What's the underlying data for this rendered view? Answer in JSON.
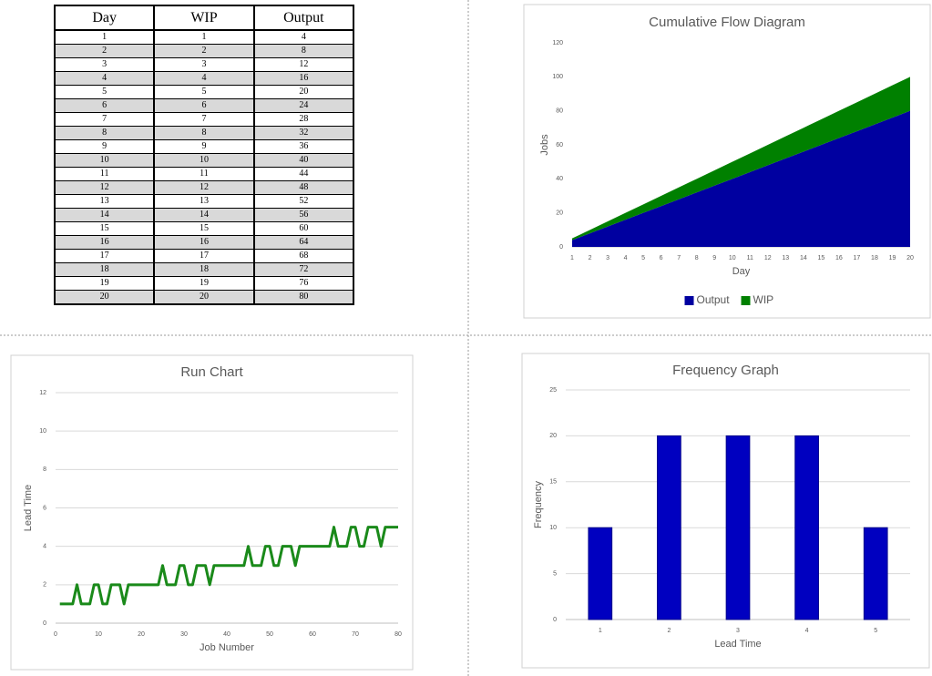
{
  "table": {
    "header": [
      "Day",
      "WIP",
      "Output"
    ],
    "rows": [
      [
        1,
        1,
        4
      ],
      [
        2,
        2,
        8
      ],
      [
        3,
        3,
        12
      ],
      [
        4,
        4,
        16
      ],
      [
        5,
        5,
        20
      ],
      [
        6,
        6,
        24
      ],
      [
        7,
        7,
        28
      ],
      [
        8,
        8,
        32
      ],
      [
        9,
        9,
        36
      ],
      [
        10,
        10,
        40
      ],
      [
        11,
        11,
        44
      ],
      [
        12,
        12,
        48
      ],
      [
        13,
        13,
        52
      ],
      [
        14,
        14,
        56
      ],
      [
        15,
        15,
        60
      ],
      [
        16,
        16,
        64
      ],
      [
        17,
        17,
        68
      ],
      [
        18,
        18,
        72
      ],
      [
        19,
        19,
        76
      ],
      [
        20,
        20,
        80
      ]
    ]
  },
  "chart_data": [
    {
      "type": "area",
      "stacked": true,
      "title": "Cumulative Flow Diagram",
      "x_label": "Day",
      "y_label": "Jobs",
      "x": [
        1,
        2,
        3,
        4,
        5,
        6,
        7,
        8,
        9,
        10,
        11,
        12,
        13,
        14,
        15,
        16,
        17,
        18,
        19,
        20
      ],
      "series": [
        {
          "name": "Output",
          "color": "#0000a0",
          "values": [
            4,
            8,
            12,
            16,
            20,
            24,
            28,
            32,
            36,
            40,
            44,
            48,
            52,
            56,
            60,
            64,
            68,
            72,
            76,
            80
          ]
        },
        {
          "name": "WIP",
          "color": "#008000",
          "values": [
            1,
            2,
            3,
            4,
            5,
            6,
            7,
            8,
            9,
            10,
            11,
            12,
            13,
            14,
            15,
            16,
            17,
            18,
            19,
            20
          ]
        }
      ],
      "xlim": [
        1,
        20
      ],
      "xticks": [
        1,
        2,
        3,
        4,
        5,
        6,
        7,
        8,
        9,
        10,
        11,
        12,
        13,
        14,
        15,
        16,
        17,
        18,
        19,
        20
      ],
      "ylim": [
        0,
        120
      ],
      "yticks": [
        0,
        20,
        40,
        60,
        80,
        100,
        120
      ],
      "grid": false,
      "legend": "bottom"
    },
    {
      "type": "line",
      "title": "Run Chart",
      "x_label": "Job Number",
      "y_label": "Lead Time",
      "x": [
        1,
        2,
        3,
        4,
        5,
        6,
        7,
        8,
        9,
        10,
        11,
        12,
        13,
        14,
        15,
        16,
        17,
        18,
        19,
        20,
        21,
        22,
        23,
        24,
        25,
        26,
        27,
        28,
        29,
        30,
        31,
        32,
        33,
        34,
        35,
        36,
        37,
        38,
        39,
        40,
        41,
        42,
        43,
        44,
        45,
        46,
        47,
        48,
        49,
        50,
        51,
        52,
        53,
        54,
        55,
        56,
        57,
        58,
        59,
        60,
        61,
        62,
        63,
        64,
        65,
        66,
        67,
        68,
        69,
        70,
        71,
        72,
        73,
        74,
        75,
        76,
        77,
        78,
        79,
        80
      ],
      "values": [
        1,
        1,
        1,
        1,
        2,
        1,
        1,
        1,
        2,
        2,
        1,
        1,
        2,
        2,
        2,
        1,
        2,
        2,
        2,
        2,
        2,
        2,
        2,
        2,
        3,
        2,
        2,
        2,
        3,
        3,
        2,
        2,
        3,
        3,
        3,
        2,
        3,
        3,
        3,
        3,
        3,
        3,
        3,
        3,
        4,
        3,
        3,
        3,
        4,
        4,
        3,
        3,
        4,
        4,
        4,
        3,
        4,
        4,
        4,
        4,
        4,
        4,
        4,
        4,
        5,
        4,
        4,
        4,
        5,
        5,
        4,
        4,
        5,
        5,
        5,
        4,
        5,
        5,
        5,
        5
      ],
      "color": "#1a8a1a",
      "xlim": [
        0,
        80
      ],
      "xticks": [
        0,
        10,
        20,
        30,
        40,
        50,
        60,
        70,
        80
      ],
      "ylim": [
        0,
        12
      ],
      "yticks": [
        0,
        2,
        4,
        6,
        8,
        10,
        12
      ],
      "grid": true
    },
    {
      "type": "bar",
      "title": "Frequency Graph",
      "x_label": "Lead Time",
      "y_label": "Frequency",
      "categories": [
        "1",
        "2",
        "3",
        "4",
        "5"
      ],
      "values": [
        10,
        20,
        20,
        20,
        10
      ],
      "color": "#0000c0",
      "ylim": [
        0,
        25
      ],
      "yticks": [
        0,
        5,
        10,
        15,
        20,
        25
      ],
      "grid": true
    }
  ]
}
